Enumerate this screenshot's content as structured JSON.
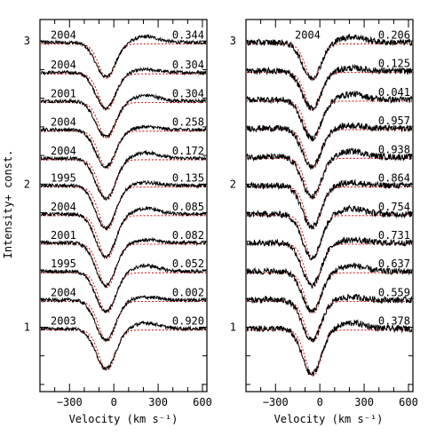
{
  "chart_data": [
    {
      "type": "line",
      "panel": "left",
      "xlabel": "Velocity (km s⁻¹)",
      "ylabel": "Intensity+ const.",
      "xlim": [
        -500,
        630
      ],
      "ylim": [
        0.55,
        3.15
      ],
      "x_ticks": [
        -300,
        0,
        300,
        600
      ],
      "x_tick_labels": [
        "−300",
        "0",
        "300",
        "600"
      ],
      "y_ticks": [
        1,
        2,
        3
      ],
      "y_tick_labels": [
        "1",
        "2",
        "3"
      ],
      "series": [
        {
          "year": "2004",
          "phase": "0.344",
          "offset": 2.98,
          "depth": 0.24,
          "width": 95
        },
        {
          "year": "2004",
          "phase": "0.304",
          "offset": 2.77,
          "depth": 0.25,
          "width": 95
        },
        {
          "year": "2001",
          "phase": "0.304",
          "offset": 2.57,
          "depth": 0.25,
          "width": 95
        },
        {
          "year": "2004",
          "phase": "0.258",
          "offset": 2.37,
          "depth": 0.26,
          "width": 95
        },
        {
          "year": "2004",
          "phase": "0.172",
          "offset": 2.17,
          "depth": 0.28,
          "width": 95
        },
        {
          "year": "1995",
          "phase": "0.135",
          "offset": 1.98,
          "depth": 0.3,
          "width": 95
        },
        {
          "year": "2004",
          "phase": "0.085",
          "offset": 1.78,
          "depth": 0.3,
          "width": 95
        },
        {
          "year": "2001",
          "phase": "0.082",
          "offset": 1.58,
          "depth": 0.3,
          "width": 95
        },
        {
          "year": "1995",
          "phase": "0.052",
          "offset": 1.38,
          "depth": 0.28,
          "width": 95
        },
        {
          "year": "2004",
          "phase": "0.002",
          "offset": 1.18,
          "depth": 0.28,
          "width": 95
        },
        {
          "year": "2003",
          "phase": "0.920",
          "offset": 0.98,
          "depth": 0.28,
          "width": 95
        }
      ]
    },
    {
      "type": "line",
      "panel": "right",
      "xlabel": "Velocity (km s⁻¹)",
      "xlim": [
        -500,
        630
      ],
      "ylim": [
        0.55,
        3.15
      ],
      "x_ticks": [
        -300,
        0,
        300,
        600
      ],
      "x_tick_labels": [
        "−300",
        "0",
        "300",
        "600"
      ],
      "y_ticks": [
        1,
        2,
        3
      ],
      "y_tick_labels": [
        "1",
        "2",
        "3"
      ],
      "series": [
        {
          "year": "2004",
          "phase": "0.206",
          "offset": 2.98,
          "depth": 0.25,
          "width": 90
        },
        {
          "year": "",
          "phase": "0.125",
          "offset": 2.78,
          "depth": 0.26,
          "width": 90
        },
        {
          "year": "",
          "phase": "0.041",
          "offset": 2.58,
          "depth": 0.27,
          "width": 90
        },
        {
          "year": "",
          "phase": "0.957",
          "offset": 2.38,
          "depth": 0.27,
          "width": 90
        },
        {
          "year": "",
          "phase": "0.938",
          "offset": 2.18,
          "depth": 0.28,
          "width": 90
        },
        {
          "year": "",
          "phase": "0.864",
          "offset": 1.98,
          "depth": 0.29,
          "width": 90
        },
        {
          "year": "",
          "phase": "0.754",
          "offset": 1.78,
          "depth": 0.3,
          "width": 90
        },
        {
          "year": "",
          "phase": "0.731",
          "offset": 1.58,
          "depth": 0.3,
          "width": 90
        },
        {
          "year": "",
          "phase": "0.637",
          "offset": 1.38,
          "depth": 0.28,
          "width": 90
        },
        {
          "year": "",
          "phase": "0.559",
          "offset": 1.18,
          "depth": 0.28,
          "width": 90
        },
        {
          "year": "",
          "phase": "0.378",
          "offset": 0.98,
          "depth": 0.32,
          "width": 90
        }
      ]
    }
  ],
  "colors": {
    "observed": "#000000",
    "model": "#e8191e",
    "axis": "#000000"
  }
}
